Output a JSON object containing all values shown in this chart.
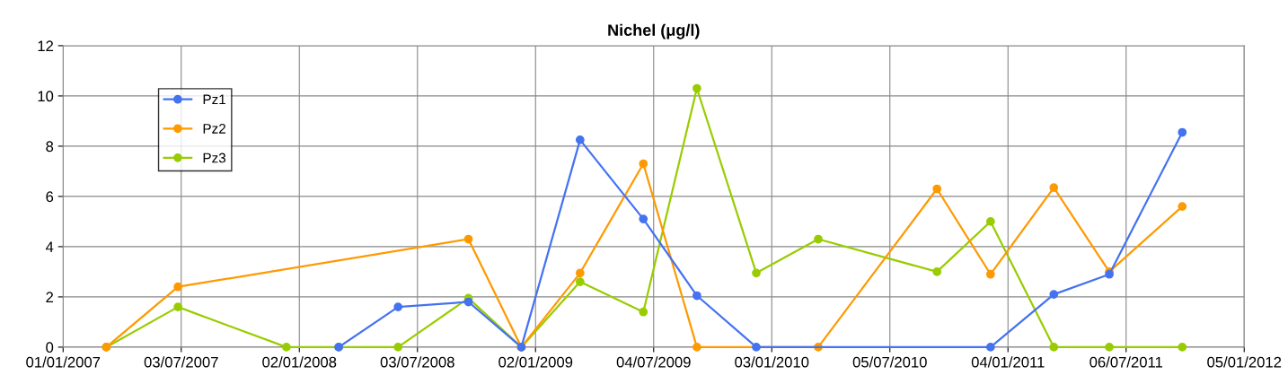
{
  "chart_data": {
    "type": "line",
    "title": "Nichel (μg/l)",
    "xlim": [
      "2007-01-01",
      "2012-01-05"
    ],
    "xticks": [
      {
        "value": "2007-01-01",
        "label": "01/01/2007"
      },
      {
        "value": "2007-07-03",
        "label": "03/07/2007"
      },
      {
        "value": "2008-01-02",
        "label": "02/01/2008"
      },
      {
        "value": "2008-07-03",
        "label": "03/07/2008"
      },
      {
        "value": "2009-01-02",
        "label": "02/01/2009"
      },
      {
        "value": "2009-07-04",
        "label": "04/07/2009"
      },
      {
        "value": "2010-01-03",
        "label": "03/01/2010"
      },
      {
        "value": "2010-07-05",
        "label": "05/07/2010"
      },
      {
        "value": "2011-01-04",
        "label": "04/01/2011"
      },
      {
        "value": "2011-07-06",
        "label": "06/07/2011"
      },
      {
        "value": "2012-01-05",
        "label": "05/01/2012"
      }
    ],
    "ylim": [
      0,
      12
    ],
    "yticks": [
      0,
      2,
      4,
      6,
      8,
      10,
      12
    ],
    "grid": true,
    "legend": "top left",
    "marker": "circle",
    "line_style": "solid",
    "series": [
      {
        "name": "Pz1",
        "color": "#4472f0",
        "x": [
          "2008-03-03",
          "2008-06-03",
          "2008-09-20",
          "2008-12-11",
          "2009-03-12",
          "2009-06-18",
          "2009-09-09",
          "2009-12-10",
          "2010-12-08",
          "2011-03-16",
          "2011-06-10",
          "2011-10-01"
        ],
        "values": [
          0,
          1.6,
          1.8,
          0,
          8.25,
          5.1,
          2.05,
          0,
          0,
          2.1,
          2.9,
          8.55
        ]
      },
      {
        "name": "Pz2",
        "color": "#ff9900",
        "x": [
          "2007-03-09",
          "2007-06-28",
          "2008-09-20",
          "2008-12-11",
          "2009-03-12",
          "2009-06-18",
          "2009-09-09",
          "2010-03-16",
          "2010-09-16",
          "2010-12-08",
          "2011-03-16",
          "2011-06-10",
          "2011-10-01"
        ],
        "values": [
          0,
          2.4,
          4.3,
          0,
          2.95,
          7.3,
          0,
          0,
          6.3,
          2.9,
          6.35,
          3.0,
          5.6
        ]
      },
      {
        "name": "Pz3",
        "color": "#99cc00",
        "x": [
          "2007-03-09",
          "2007-06-28",
          "2007-12-13",
          "2008-03-03",
          "2008-06-03",
          "2008-09-20",
          "2008-12-11",
          "2009-03-12",
          "2009-06-18",
          "2009-09-09",
          "2009-12-10",
          "2010-03-16",
          "2010-09-16",
          "2010-12-08",
          "2011-03-16",
          "2011-06-10",
          "2011-10-01"
        ],
        "values": [
          0,
          1.6,
          0,
          0,
          0,
          1.95,
          0,
          2.6,
          1.4,
          10.3,
          2.95,
          4.3,
          3.0,
          5.0,
          0,
          0,
          0
        ]
      }
    ]
  }
}
